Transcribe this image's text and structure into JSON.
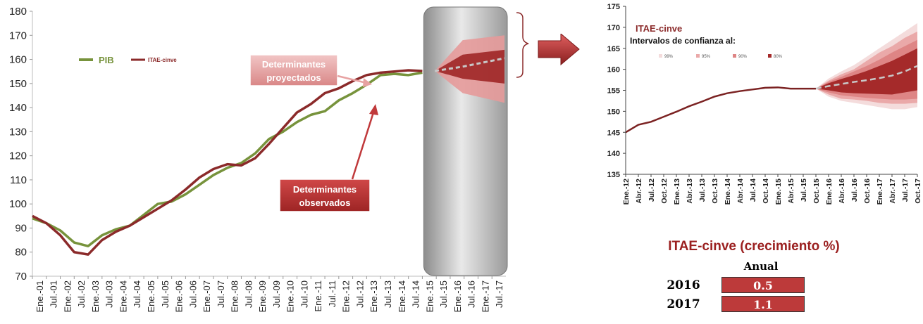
{
  "chart_data": [
    {
      "type": "line",
      "title": "",
      "xlabel": "",
      "ylabel": "",
      "ylim": [
        70,
        180
      ],
      "yticks": [
        70,
        80,
        90,
        100,
        110,
        120,
        130,
        140,
        150,
        160,
        170,
        180
      ],
      "x_tick_labels": [
        "Ene.-01",
        "Jul.-01",
        "Ene.-02",
        "Jul.-02",
        "Ene.-03",
        "Jul.-03",
        "Ene.-04",
        "Jul.-04",
        "Ene.-05",
        "Jul.-05",
        "Ene.-06",
        "Jul.-06",
        "Ene.-07",
        "Jul.-07",
        "Ene.-08",
        "Jul.-08",
        "Ene.-09",
        "Jul.-09",
        "Ene.-10",
        "Jul.-10",
        "Ene.-11",
        "Jul.-11",
        "Ene.-12",
        "Jul.-12",
        "Ene.-13",
        "Jul.-13",
        "Ene.-14",
        "Jul.-14",
        "Ene.-15",
        "Jul.-15",
        "Ene.-16",
        "Jul.-16",
        "Ene.-17",
        "Jul.-17"
      ],
      "series": [
        {
          "name": "PIB",
          "color": "#77933c",
          "values": [
            94,
            92,
            89,
            84,
            82.5,
            87,
            89.5,
            91,
            95.5,
            100,
            101,
            104,
            108,
            112,
            115,
            117,
            121,
            127,
            130,
            134,
            137,
            138.5,
            143,
            146,
            149.5,
            153.5,
            154,
            153.5,
            154.5
          ]
        },
        {
          "name": "ITAE-cinve",
          "color": "#8b2a2a",
          "values": [
            95,
            92,
            87,
            80,
            79,
            85,
            88.5,
            91,
            94.5,
            98,
            101.5,
            106,
            111,
            114.5,
            116.5,
            116,
            119,
            125,
            131.5,
            138,
            141.5,
            146,
            148,
            151,
            153.5,
            154.5,
            155,
            155.5,
            155.2
          ]
        }
      ],
      "forecast": {
        "median": [
          155.2,
          157,
          160.5
        ],
        "range_99": [
          [
            155.2,
            155.2
          ],
          [
            146,
            168
          ],
          [
            142,
            170
          ]
        ],
        "range_80": [
          [
            155.2,
            155.2
          ],
          [
            152,
            162
          ],
          [
            150,
            164
          ]
        ]
      },
      "annotations": [
        {
          "text": "Determinantes proyectados"
        },
        {
          "text": "Determinantes observados"
        }
      ],
      "legend": "top-left"
    },
    {
      "type": "area",
      "title": "ITAE-cinve",
      "subtitle": "Intervalos de confianza al:",
      "legend_items": [
        {
          "label": "99%",
          "color": "#f4dcdc"
        },
        {
          "label": "95%",
          "color": "#eaa9a9"
        },
        {
          "label": "90%",
          "color": "#de8585"
        },
        {
          "label": "80%",
          "color": "#a52a2a"
        }
      ],
      "ylim": [
        135,
        175
      ],
      "yticks": [
        135,
        140,
        145,
        150,
        155,
        160,
        165,
        170,
        175
      ],
      "x_tick_labels": [
        "Ene.-12",
        "Abr.-12",
        "Jul.-12",
        "Oct.-12",
        "Ene.-13",
        "Abr.-13",
        "Jul.-13",
        "Oct.-13",
        "Ene.-14",
        "Abr.-14",
        "Jul.-14",
        "Oct.-14",
        "Ene.-15",
        "Abr.-15",
        "Jul.-15",
        "Oct.-15",
        "Ene.-16",
        "Abr.-16",
        "Jul.-16",
        "Oct.-16",
        "Ene.-17",
        "Abr.-17",
        "Jul.-17",
        "Oct.-17"
      ],
      "observed": [
        145,
        146.8,
        147.5,
        148.7,
        149.9,
        151.2,
        152.3,
        153.5,
        154.3,
        154.8,
        155.2,
        155.6,
        155.7,
        155.4,
        155.4,
        155.4
      ],
      "forecast_median": [
        155.4,
        156.0,
        156.5,
        157.0,
        157.4,
        157.9,
        158.5,
        159.5,
        160.8
      ],
      "bands": [
        {
          "level": "99%",
          "lower": [
            155.4,
            153.5,
            152.5,
            152,
            151.5,
            151,
            150.5,
            150.5,
            151
          ],
          "upper": [
            155.4,
            157.8,
            159.5,
            161,
            163,
            165,
            167,
            169,
            171
          ]
        },
        {
          "level": "95%",
          "lower": [
            155.4,
            154,
            153,
            152.8,
            152.5,
            152,
            151.8,
            151.8,
            152
          ],
          "upper": [
            155.4,
            157.3,
            158.8,
            160,
            162,
            164,
            165.5,
            167.5,
            169
          ]
        },
        {
          "level": "90%",
          "lower": [
            155.4,
            154.5,
            153.8,
            153.5,
            153.2,
            153,
            152.8,
            152.8,
            153
          ],
          "upper": [
            155.4,
            157,
            158.2,
            159.5,
            160.8,
            162.3,
            164,
            165.5,
            167
          ]
        },
        {
          "level": "80%",
          "lower": [
            155.4,
            155,
            154.5,
            154.3,
            154.2,
            154.1,
            154,
            154.5,
            155
          ],
          "upper": [
            155.4,
            156.7,
            157.7,
            158.6,
            159.6,
            160.8,
            162,
            163.5,
            165
          ]
        }
      ]
    }
  ],
  "table": {
    "title": "ITAE-cinve (crecimiento %)",
    "header": "Anual",
    "rows": [
      {
        "year": "2016",
        "value": "0.5"
      },
      {
        "year": "2017",
        "value": "1.1"
      }
    ]
  },
  "colors": {
    "pib": "#77933c",
    "itae": "#8b2a2a",
    "callout": "#c0393b",
    "callout_light": "#e7a2a2"
  }
}
